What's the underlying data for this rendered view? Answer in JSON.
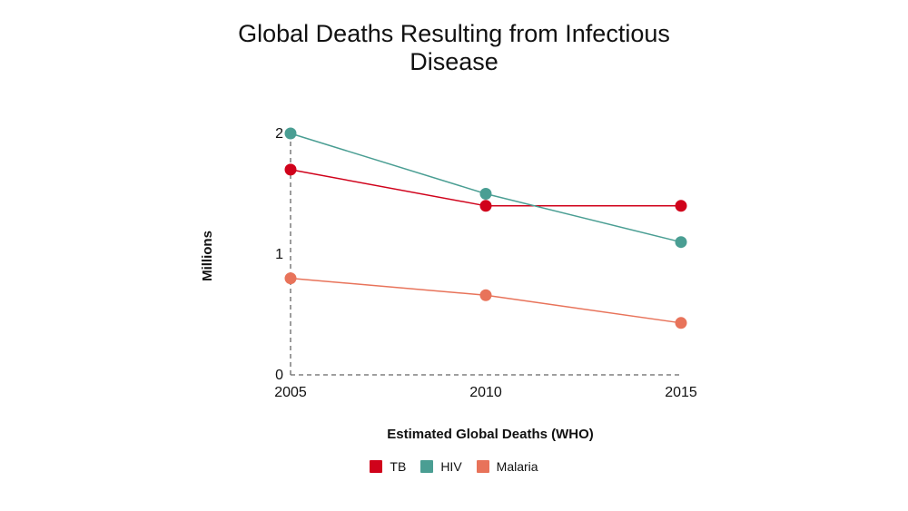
{
  "chart_data": {
    "type": "line",
    "title_lines": [
      "Global Deaths Resulting from Infectious",
      "Disease"
    ],
    "xlabel": "Estimated Global Deaths (WHO)",
    "ylabel": "Millions",
    "categories": [
      "2005",
      "2010",
      "2015"
    ],
    "y_ticks": [
      "0",
      "1",
      "2"
    ],
    "ylim": [
      0,
      2
    ],
    "grid": false,
    "legend_position": "bottom",
    "series": [
      {
        "name": "TB",
        "color": "#d0021b",
        "values": [
          1.7,
          1.4,
          1.4
        ]
      },
      {
        "name": "HIV",
        "color": "#4a9e93",
        "values": [
          2.0,
          1.5,
          1.1
        ]
      },
      {
        "name": "Malaria",
        "color": "#e8735a",
        "values": [
          0.8,
          0.66,
          0.43
        ]
      }
    ]
  }
}
